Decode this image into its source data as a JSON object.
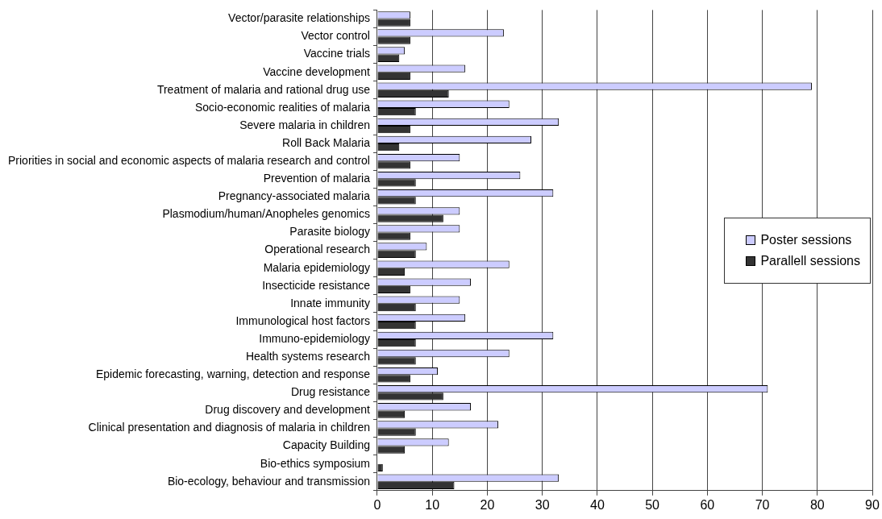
{
  "chart_data": {
    "type": "bar",
    "orientation": "horizontal",
    "categories": [
      "Vector/parasite relationships",
      "Vector control",
      "Vaccine trials",
      "Vaccine development",
      "Treatment of malaria and rational drug use",
      "Socio-economic realities of malaria",
      "Severe malaria in children",
      "Roll Back Malaria",
      "Priorities in social and economic aspects of malaria research and control",
      "Prevention of malaria",
      "Pregnancy-associated malaria",
      "Plasmodium/human/Anopheles genomics",
      "Parasite biology",
      "Operational research",
      "Malaria epidemiology",
      "Insecticide resistance",
      "Innate immunity",
      "Immunological host factors",
      "Immuno-epidemiology",
      "Health systems research",
      "Epidemic forecasting, warning, detection and response",
      "Drug resistance",
      "Drug discovery and development",
      "Clinical presentation and diagnosis of malaria in children",
      "Capacity Building",
      "Bio-ethics symposium",
      "Bio-ecology, behaviour and transmission"
    ],
    "series": [
      {
        "name": "Poster sessions",
        "color": "#ccccff",
        "values": [
          6,
          23,
          5,
          16,
          79,
          24,
          33,
          28,
          15,
          26,
          32,
          15,
          15,
          9,
          24,
          17,
          15,
          16,
          32,
          24,
          11,
          71,
          17,
          22,
          13,
          null,
          33
        ]
      },
      {
        "name": "Parallell sessions",
        "color": "#333333",
        "values": [
          6,
          6,
          4,
          6,
          13,
          7,
          6,
          4,
          6,
          7,
          7,
          12,
          6,
          7,
          5,
          6,
          7,
          7,
          7,
          7,
          6,
          12,
          5,
          7,
          5,
          1,
          14
        ]
      }
    ],
    "xlim": [
      0,
      90
    ],
    "xticks": [
      0,
      10,
      20,
      30,
      40,
      50,
      60,
      70,
      80,
      90
    ],
    "grid": "x",
    "legend": "right"
  }
}
